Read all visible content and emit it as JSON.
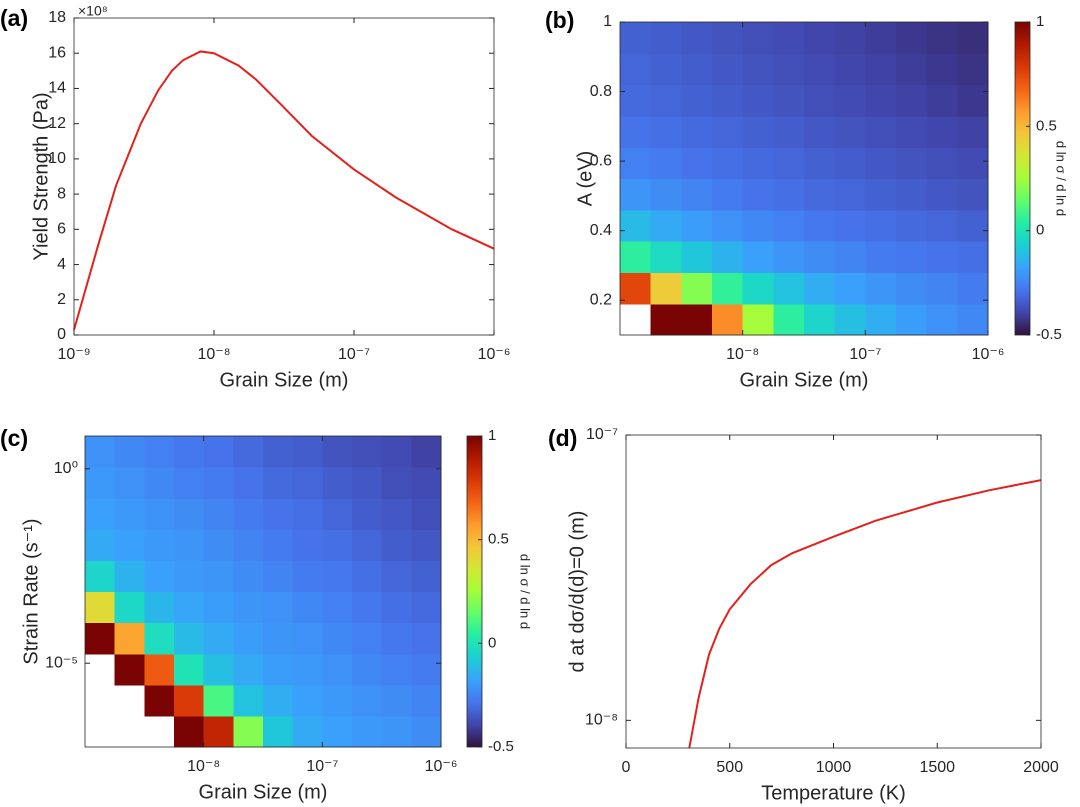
{
  "chart_data": [
    {
      "type": "line",
      "panel_label": "(a)",
      "xlabel": "Grain Size (m)",
      "ylabel": "Yield Strength (Pa)",
      "y_exponent_label": "×10⁸",
      "xscale": "log",
      "xlim": [
        1e-09,
        1e-06
      ],
      "xticks": [
        {
          "value": 1e-09,
          "label": "10⁻⁹"
        },
        {
          "value": 1e-08,
          "label": "10⁻⁸"
        },
        {
          "value": 1e-07,
          "label": "10⁻⁷"
        },
        {
          "value": 1e-06,
          "label": "10⁻⁶"
        }
      ],
      "ylim": [
        0,
        18
      ],
      "yticks": [
        0,
        2,
        4,
        6,
        8,
        10,
        12,
        14,
        16,
        18
      ],
      "color": "#e3211c",
      "x": [
        1e-09,
        1.2e-09,
        1.5e-09,
        2e-09,
        3e-09,
        4e-09,
        5e-09,
        6e-09,
        8e-09,
        1e-08,
        1.5e-08,
        2e-08,
        3e-08,
        5e-08,
        1e-07,
        2e-07,
        5e-07,
        1e-06
      ],
      "values": [
        0.3,
        2.5,
        5.2,
        8.5,
        12.0,
        13.9,
        15.0,
        15.6,
        16.1,
        16.0,
        15.3,
        14.5,
        13.1,
        11.3,
        9.4,
        7.8,
        6.0,
        4.9
      ]
    },
    {
      "type": "heatmap",
      "panel_label": "(b)",
      "xlabel": "Grain Size (m)",
      "ylabel": "A (eV)",
      "xscale": "log",
      "xlim": [
        1e-09,
        1e-06
      ],
      "xticks": [
        {
          "value": 1e-08,
          "label": "10⁻⁸"
        },
        {
          "value": 1e-07,
          "label": "10⁻⁷"
        },
        {
          "value": 1e-06,
          "label": "10⁻⁶"
        }
      ],
      "ylim": [
        0.1,
        1
      ],
      "yticks": [
        0.2,
        0.4,
        0.6,
        0.8,
        1
      ],
      "clim": [
        -0.5,
        1
      ],
      "cticks": [
        -0.5,
        0,
        0.5,
        1
      ],
      "clabel": "d ln σ / d ln d",
      "colormap": [
        "#30123b",
        "#4145ab",
        "#4675ed",
        "#39a2fc",
        "#1bcfd4",
        "#24eca6",
        "#61fc6c",
        "#a4fc3b",
        "#d1e834",
        "#f3c63a",
        "#fe9b2d",
        "#f36315",
        "#d93806",
        "#b11901",
        "#7a0403"
      ],
      "z": [
        [
          null,
          1,
          1,
          0.6,
          0.25,
          0.05,
          -0.05,
          -0.11,
          -0.15,
          -0.19,
          -0.22,
          -0.24
        ],
        [
          0.75,
          0.45,
          0.2,
          0.06,
          -0.04,
          -0.1,
          -0.15,
          -0.18,
          -0.21,
          -0.23,
          -0.25,
          -0.27
        ],
        [
          0.05,
          -0.03,
          -0.09,
          -0.14,
          -0.18,
          -0.21,
          -0.23,
          -0.25,
          -0.27,
          -0.28,
          -0.29,
          -0.3
        ],
        [
          -0.12,
          -0.16,
          -0.19,
          -0.22,
          -0.24,
          -0.26,
          -0.28,
          -0.29,
          -0.3,
          -0.31,
          -0.32,
          -0.33
        ],
        [
          -0.21,
          -0.23,
          -0.25,
          -0.27,
          -0.29,
          -0.3,
          -0.31,
          -0.32,
          -0.33,
          -0.34,
          -0.35,
          -0.36
        ],
        [
          -0.26,
          -0.27,
          -0.29,
          -0.3,
          -0.31,
          -0.32,
          -0.33,
          -0.34,
          -0.35,
          -0.36,
          -0.37,
          -0.38
        ],
        [
          -0.29,
          -0.3,
          -0.31,
          -0.32,
          -0.33,
          -0.34,
          -0.35,
          -0.36,
          -0.37,
          -0.38,
          -0.39,
          -0.4
        ],
        [
          -0.31,
          -0.32,
          -0.33,
          -0.34,
          -0.35,
          -0.36,
          -0.37,
          -0.38,
          -0.39,
          -0.4,
          -0.41,
          -0.42
        ],
        [
          -0.32,
          -0.33,
          -0.34,
          -0.35,
          -0.36,
          -0.37,
          -0.38,
          -0.39,
          -0.4,
          -0.41,
          -0.42,
          -0.43
        ],
        [
          -0.33,
          -0.34,
          -0.35,
          -0.36,
          -0.37,
          -0.38,
          -0.39,
          -0.4,
          -0.41,
          -0.42,
          -0.43,
          -0.44
        ]
      ]
    },
    {
      "type": "heatmap",
      "panel_label": "(c)",
      "xlabel": "Grain Size (m)",
      "ylabel": "Strain Rate (s⁻¹)",
      "xscale": "log",
      "xlim": [
        1e-09,
        1e-06
      ],
      "xticks": [
        {
          "value": 1e-08,
          "label": "10⁻⁸"
        },
        {
          "value": 1e-07,
          "label": "10⁻⁷"
        },
        {
          "value": 1e-06,
          "label": "10⁻⁶"
        }
      ],
      "yscale": "log",
      "ylim": [
        7e-08,
        7
      ],
      "yticks": [
        {
          "value": 1e-05,
          "label": "10⁻⁵"
        },
        {
          "value": 1,
          "label": "10⁰"
        }
      ],
      "clim": [
        -0.5,
        1
      ],
      "cticks": [
        -0.5,
        0,
        0.5,
        1
      ],
      "clabel": "d ln σ / d ln d",
      "colormap": [
        "#30123b",
        "#4145ab",
        "#4675ed",
        "#39a2fc",
        "#1bcfd4",
        "#24eca6",
        "#61fc6c",
        "#a4fc3b",
        "#d1e834",
        "#f3c63a",
        "#fe9b2d",
        "#f36315",
        "#d93806",
        "#b11901",
        "#7a0403"
      ],
      "z": [
        [
          null,
          null,
          null,
          1,
          0.85,
          0.2,
          -0.09,
          -0.16,
          -0.18,
          -0.2,
          -0.21,
          -0.23
        ],
        [
          null,
          null,
          1,
          0.78,
          0.1,
          -0.1,
          -0.15,
          -0.18,
          -0.2,
          -0.22,
          -0.23,
          -0.25
        ],
        [
          null,
          1,
          0.7,
          0,
          -0.11,
          -0.16,
          -0.19,
          -0.2,
          -0.22,
          -0.24,
          -0.26,
          -0.27
        ],
        [
          1,
          0.55,
          -0.02,
          -0.12,
          -0.16,
          -0.19,
          -0.21,
          -0.22,
          -0.24,
          -0.26,
          -0.28,
          -0.29
        ],
        [
          0.4,
          -0.04,
          -0.13,
          -0.17,
          -0.19,
          -0.21,
          -0.22,
          -0.24,
          -0.26,
          -0.28,
          -0.3,
          -0.31
        ],
        [
          -0.05,
          -0.14,
          -0.18,
          -0.2,
          -0.21,
          -0.23,
          -0.25,
          -0.27,
          -0.28,
          -0.3,
          -0.32,
          -0.33
        ],
        [
          -0.16,
          -0.18,
          -0.2,
          -0.21,
          -0.23,
          -0.25,
          -0.27,
          -0.29,
          -0.3,
          -0.32,
          -0.34,
          -0.35
        ],
        [
          -0.18,
          -0.2,
          -0.22,
          -0.23,
          -0.25,
          -0.27,
          -0.29,
          -0.3,
          -0.32,
          -0.34,
          -0.35,
          -0.37
        ],
        [
          -0.2,
          -0.22,
          -0.24,
          -0.26,
          -0.27,
          -0.29,
          -0.31,
          -0.32,
          -0.34,
          -0.35,
          -0.37,
          -0.38
        ],
        [
          -0.22,
          -0.24,
          -0.26,
          -0.28,
          -0.29,
          -0.31,
          -0.33,
          -0.34,
          -0.36,
          -0.37,
          -0.38,
          -0.4
        ]
      ]
    },
    {
      "type": "line",
      "panel_label": "(d)",
      "xlabel": "Temperature (K)",
      "ylabel": "d at dσ/d(d)=0  (m)",
      "xlim": [
        0,
        2000
      ],
      "xticks": [
        0,
        500,
        1000,
        1500,
        2000
      ],
      "yscale": "log",
      "ylim": [
        8e-09,
        1e-07
      ],
      "yticks": [
        {
          "value": 1e-08,
          "label": "10⁻⁸"
        },
        {
          "value": 1e-07,
          "label": "10⁻⁷"
        }
      ],
      "color": "#e3211c",
      "x": [
        305,
        350,
        400,
        450,
        500,
        600,
        700,
        800,
        1000,
        1200,
        1500,
        1750,
        2000
      ],
      "values": [
        8e-09,
        1.2e-08,
        1.7e-08,
        2.1e-08,
        2.45e-08,
        3e-08,
        3.5e-08,
        3.85e-08,
        4.4e-08,
        5e-08,
        5.8e-08,
        6.4e-08,
        6.95e-08
      ]
    }
  ]
}
